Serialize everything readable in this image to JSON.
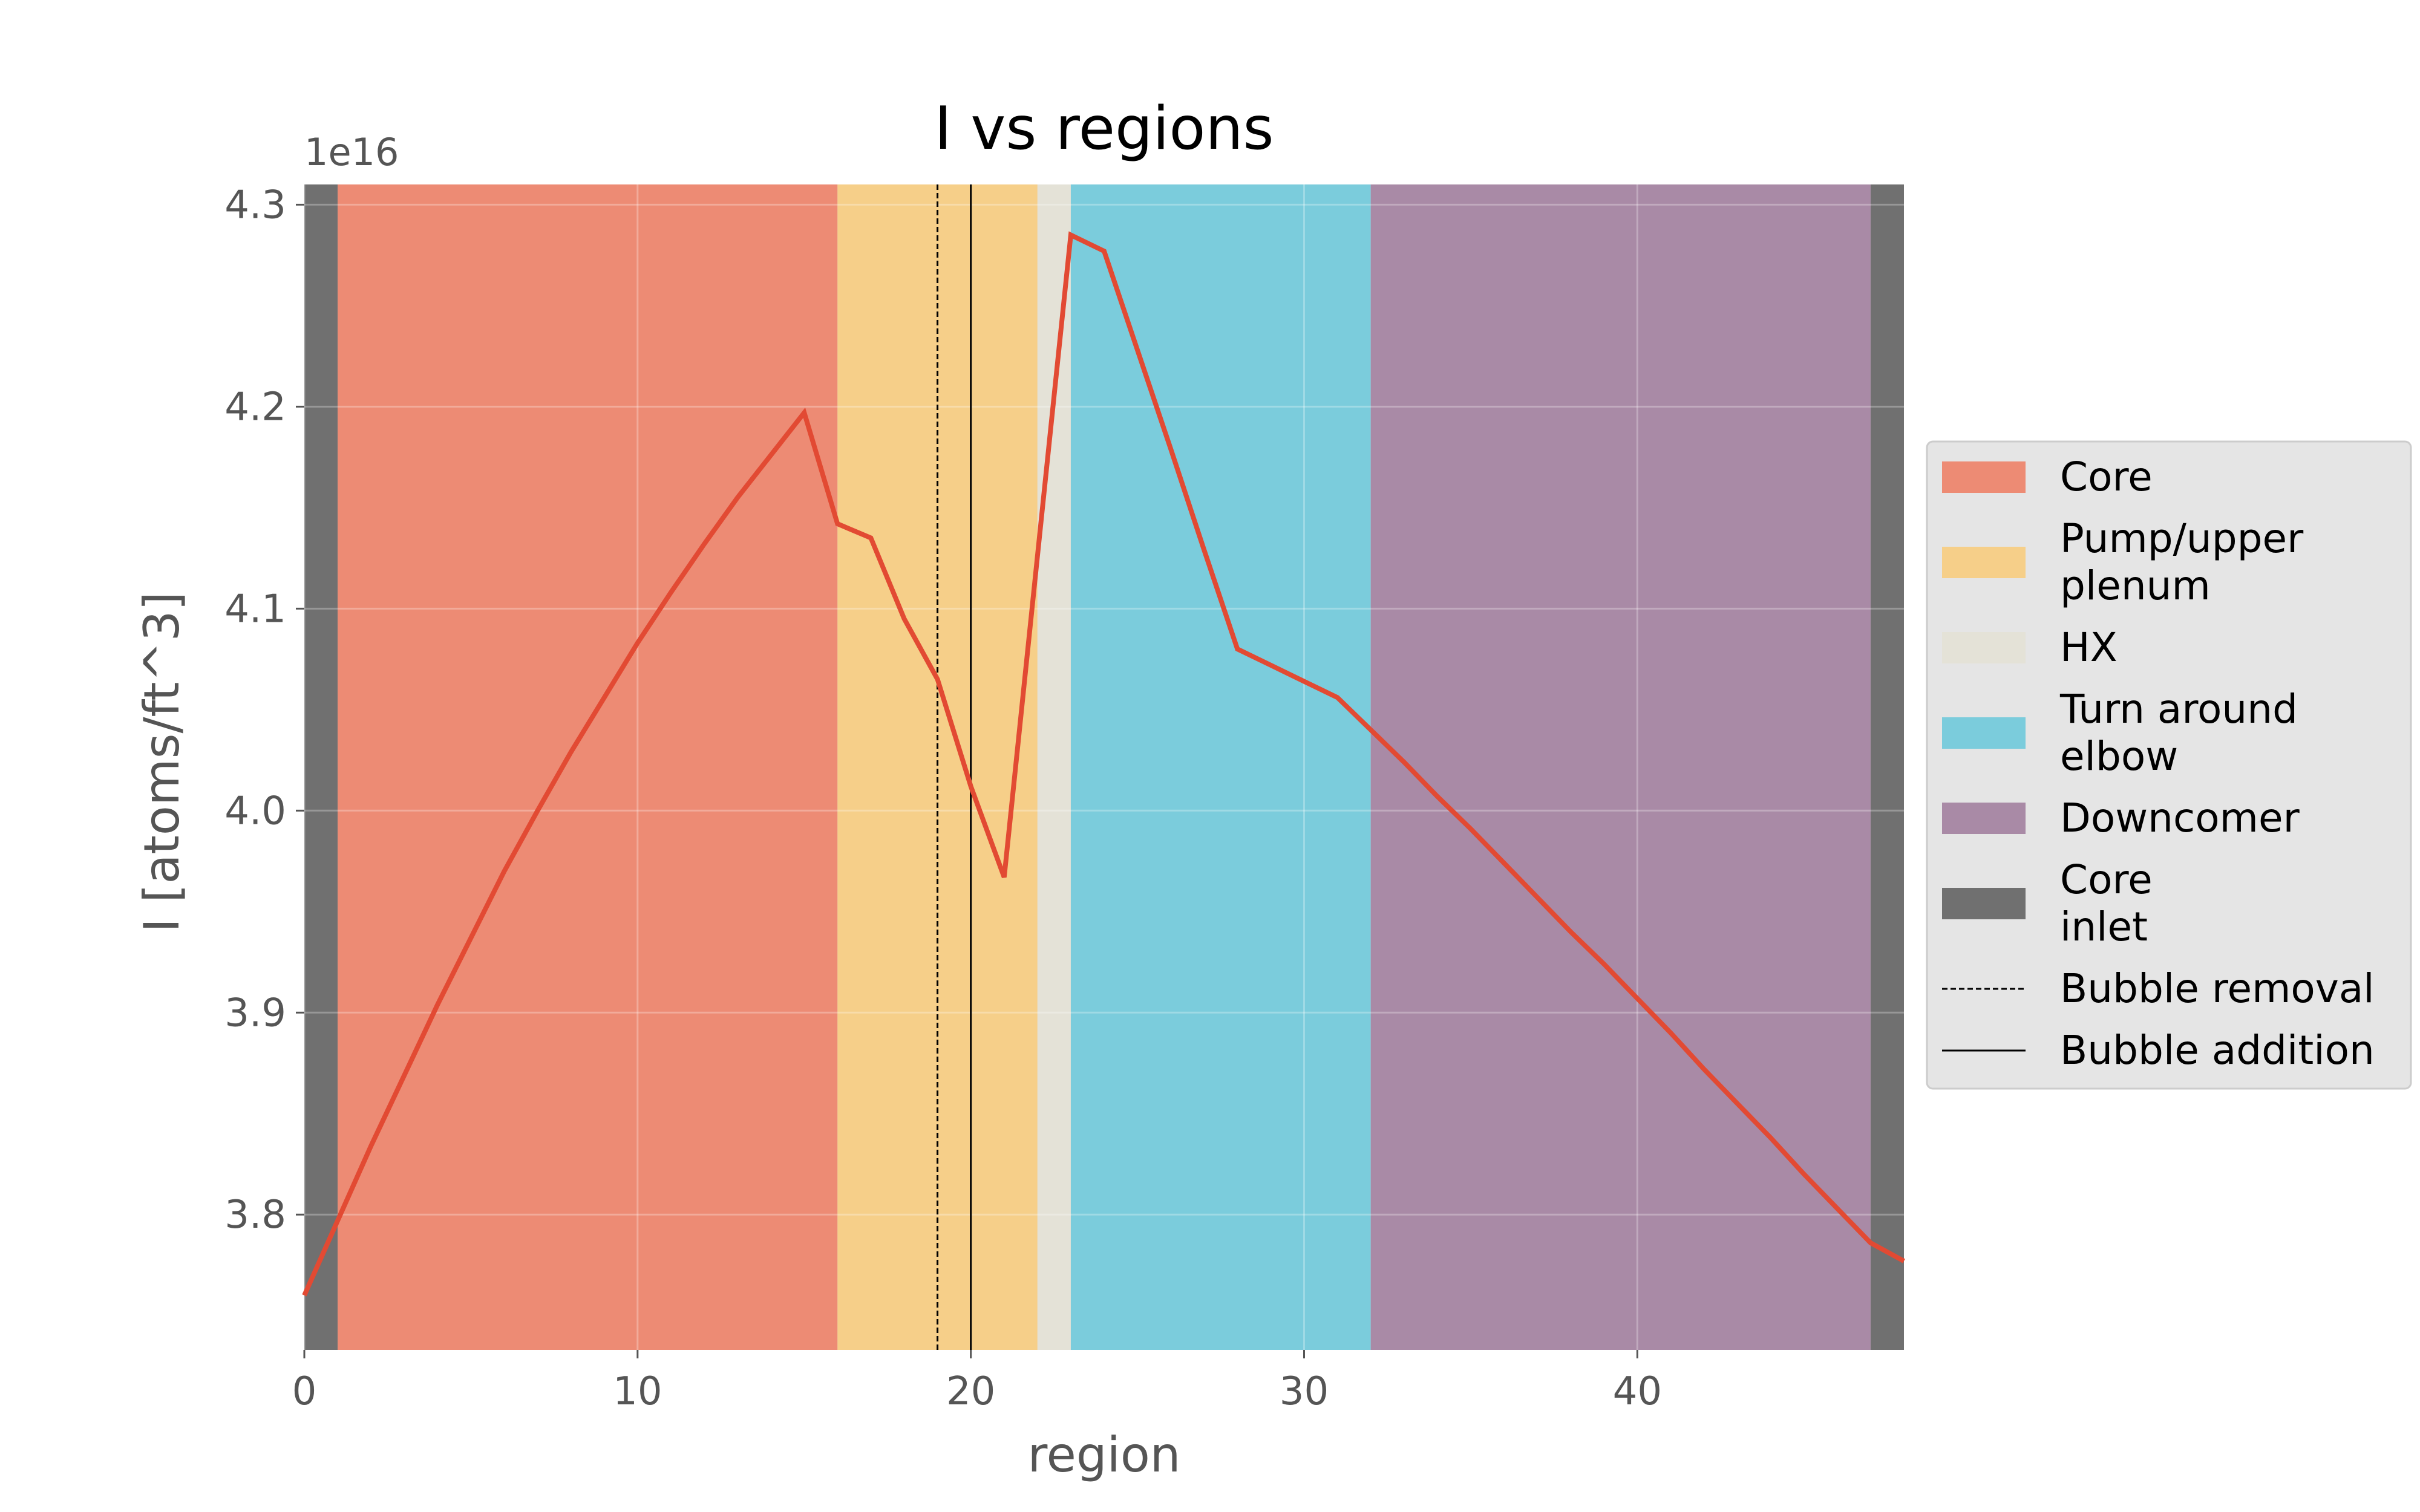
{
  "chart_data": {
    "type": "line",
    "title": "I vs regions",
    "xlabel": "region",
    "ylabel": "I [atoms/ft^3]",
    "y_offset_label": "1e16",
    "xlim": [
      0,
      48
    ],
    "ylim": [
      3.733,
      4.31
    ],
    "ylim_scaled": [
      3.733e+16,
      4.31e+16
    ],
    "xticks": [
      0,
      10,
      20,
      30,
      40
    ],
    "yticks": [
      3.8,
      3.9,
      4.0,
      4.1,
      4.2,
      4.3
    ],
    "grid": true,
    "legend_placement": "right-outside",
    "regions": [
      {
        "name": "Core",
        "ranges": [
          [
            1,
            16
          ]
        ],
        "color": "#ED8B74"
      },
      {
        "name": "Pump/upper\nplenum",
        "ranges": [
          [
            16,
            22
          ]
        ],
        "color": "#F6CF89"
      },
      {
        "name": "HX",
        "ranges": [
          [
            22,
            23
          ]
        ],
        "color": "#E4E2D7"
      },
      {
        "name": "Turn around\nelbow",
        "ranges": [
          [
            23,
            32
          ]
        ],
        "color": "#7BCCDC"
      },
      {
        "name": "Downcomer",
        "ranges": [
          [
            32,
            47
          ]
        ],
        "color": "#A98AA6"
      },
      {
        "name": "Core\ninlet",
        "ranges": [
          [
            0,
            1
          ],
          [
            47,
            48
          ]
        ],
        "color": "#707070"
      }
    ],
    "vlines": [
      {
        "name": "Bubble removal",
        "x": 19,
        "style": "dashed",
        "color": "#000000"
      },
      {
        "name": "Bubble addition",
        "x": 20,
        "style": "solid",
        "color": "#000000"
      }
    ],
    "series": [
      {
        "color": "#E24A33",
        "x": [
          0,
          1,
          2,
          3,
          4,
          5,
          6,
          7,
          8,
          9,
          10,
          11,
          12,
          13,
          14,
          15,
          16,
          17,
          18,
          19,
          20,
          21,
          22,
          23,
          24,
          25,
          26,
          27,
          28,
          29,
          30,
          31,
          32,
          33,
          34,
          35,
          36,
          37,
          38,
          39,
          40,
          41,
          42,
          43,
          44,
          45,
          46,
          47,
          48
        ],
        "values": [
          3.76,
          3.797,
          3.834,
          3.869,
          3.904,
          3.937,
          3.97,
          4.0,
          4.029,
          4.056,
          4.083,
          4.108,
          4.132,
          4.155,
          4.176,
          4.197,
          4.142,
          4.135,
          4.095,
          4.065,
          4.012,
          3.967,
          4.126,
          4.285,
          4.277,
          4.228,
          4.179,
          4.129,
          4.08,
          4.072,
          4.064,
          4.056,
          4.04,
          4.024,
          4.007,
          3.991,
          3.974,
          3.957,
          3.94,
          3.924,
          3.907,
          3.89,
          3.872,
          3.855,
          3.838,
          3.82,
          3.803,
          3.786,
          3.777
        ]
      }
    ]
  },
  "colors": {
    "figure_background": "#ffffff",
    "axes_background": "#E5E5E5",
    "grid": "#ffffff",
    "tick_text": "#555555",
    "legend_background": "#E5E5E5",
    "legend_border": "#CCCCCC"
  }
}
